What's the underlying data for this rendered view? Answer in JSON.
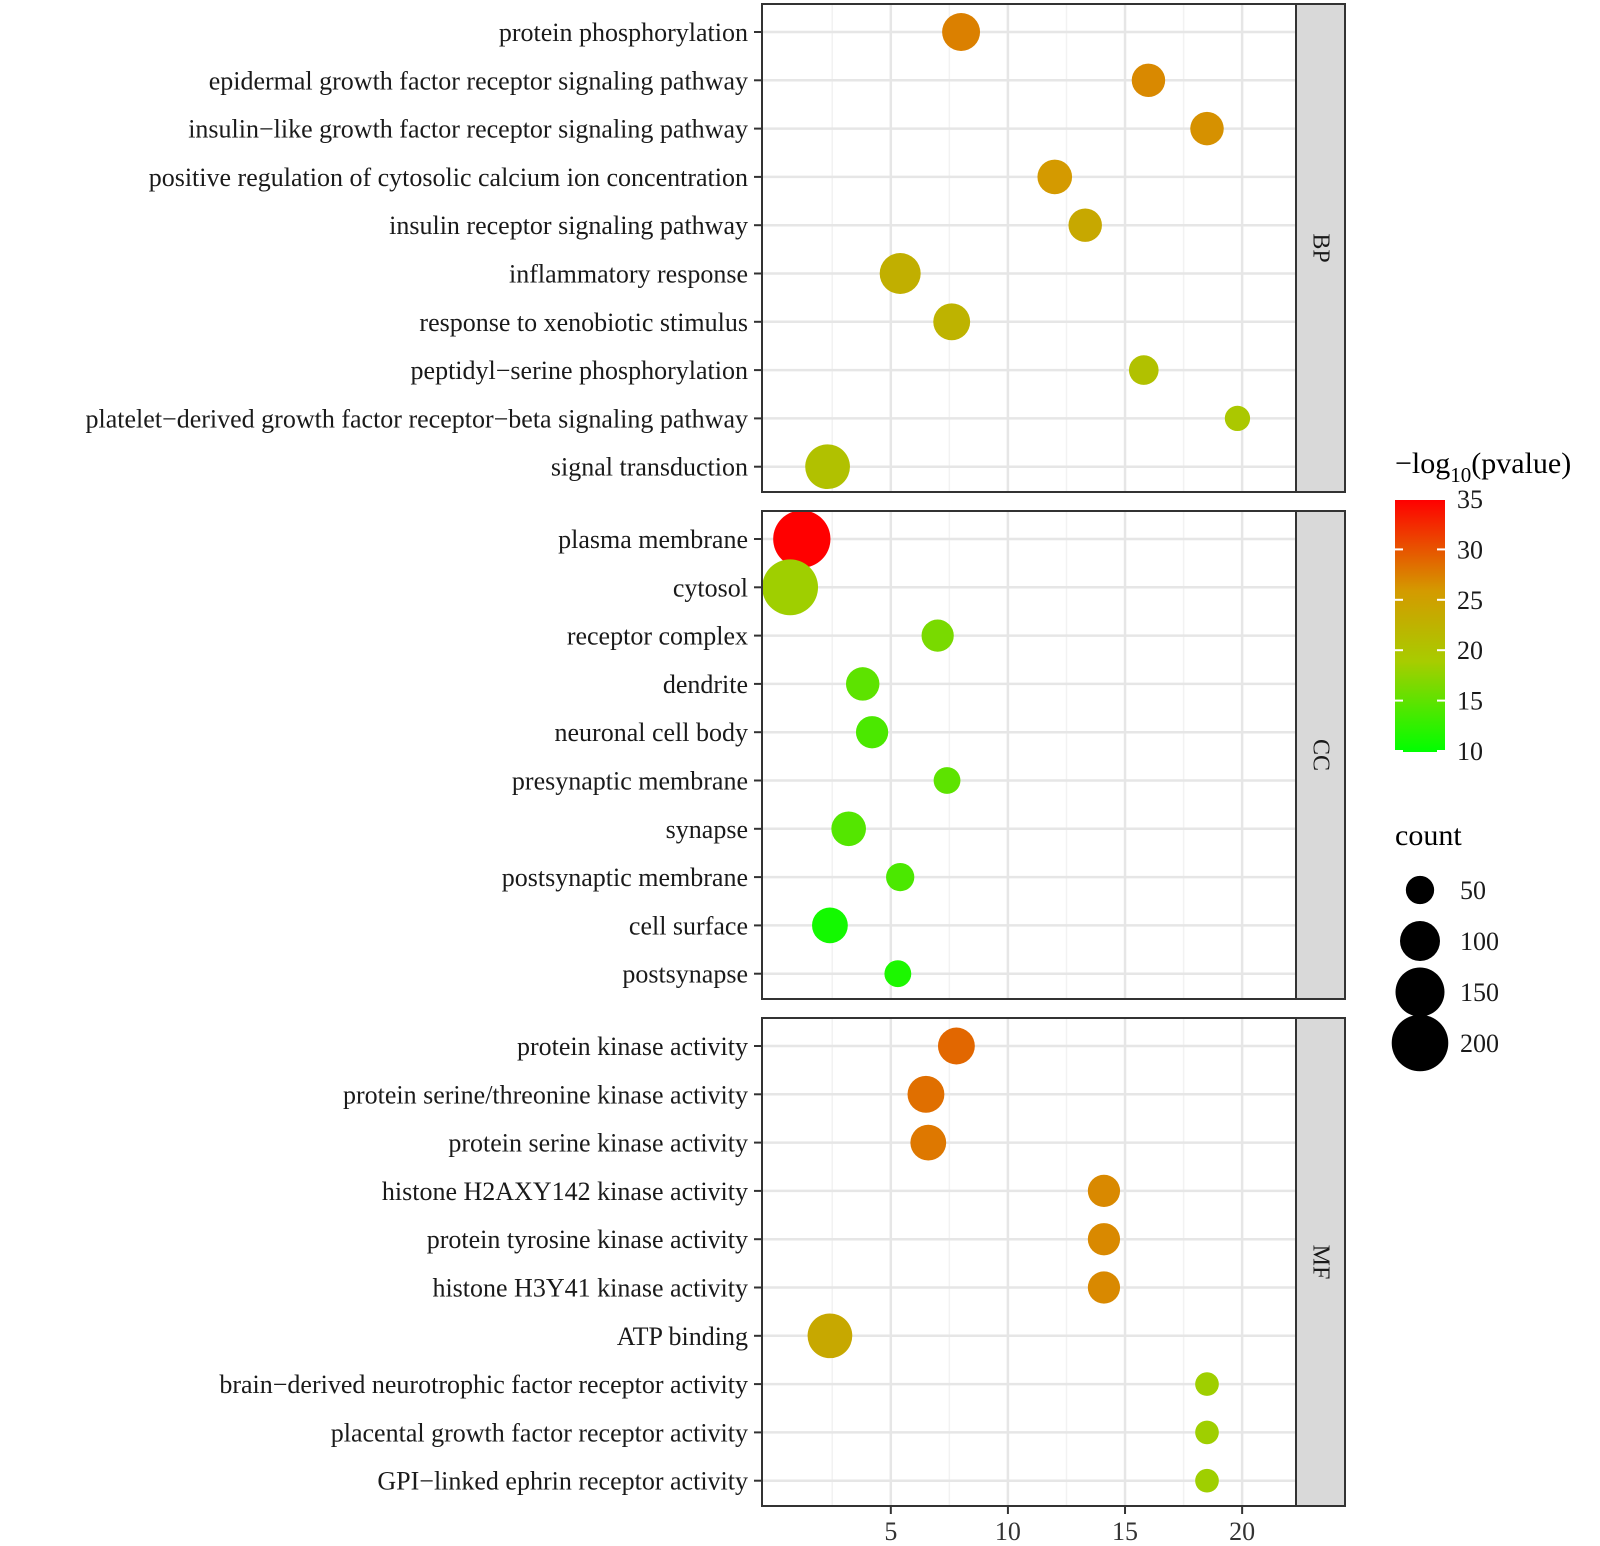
{
  "chart_data": {
    "type": "scatter",
    "x_ticks": [
      5,
      10,
      15,
      20
    ],
    "xlim": [
      -0.5,
      22.3
    ],
    "color_scale": {
      "title": "−log",
      "title_sub": "10",
      "title_suffix": "(pvalue)",
      "min": 10,
      "max": 35,
      "ticks": [
        "10",
        "15",
        "20",
        "25",
        "30",
        "35"
      ],
      "low_color": "#00ff00",
      "mid_color": "#a8cc00",
      "mid2_color": "#d49a00",
      "high_color": "#ff0000"
    },
    "size_scale": {
      "title": "count",
      "breaks": [
        50,
        100,
        150,
        200
      ],
      "labels": [
        "50",
        "100",
        "150",
        "200"
      ]
    },
    "panels": [
      {
        "facet": "BP",
        "terms": [
          {
            "term": "protein phosphorylation",
            "x": 8.0,
            "neglog10p": 27.5,
            "count": 90
          },
          {
            "term": "epidermal growth factor receptor signaling pathway",
            "x": 16.0,
            "neglog10p": 27.0,
            "count": 70
          },
          {
            "term": "insulin−like growth factor receptor signaling pathway",
            "x": 18.5,
            "neglog10p": 26.5,
            "count": 70
          },
          {
            "term": "positive regulation of cytosolic calcium ion concentration",
            "x": 12.0,
            "neglog10p": 26.0,
            "count": 75
          },
          {
            "term": "insulin receptor signaling pathway",
            "x": 13.3,
            "neglog10p": 24.0,
            "count": 70
          },
          {
            "term": "inflammatory response",
            "x": 5.4,
            "neglog10p": 23.0,
            "count": 105
          },
          {
            "term": "response to xenobiotic stimulus",
            "x": 7.6,
            "neglog10p": 22.5,
            "count": 85
          },
          {
            "term": "peptidyl−serine phosphorylation",
            "x": 15.8,
            "neglog10p": 20.5,
            "count": 55
          },
          {
            "term": "platelet−derived growth factor receptor−beta signaling pathway",
            "x": 19.8,
            "neglog10p": 19.5,
            "count": 40
          },
          {
            "term": "signal transduction",
            "x": 2.3,
            "neglog10p": 20.5,
            "count": 125
          }
        ]
      },
      {
        "facet": "CC",
        "terms": [
          {
            "term": "plasma membrane",
            "x": 1.2,
            "neglog10p": 35.0,
            "count": 205
          },
          {
            "term": "cytosol",
            "x": 0.7,
            "neglog10p": 18.5,
            "count": 195
          },
          {
            "term": "receptor complex",
            "x": 7.0,
            "neglog10p": 16.5,
            "count": 65
          },
          {
            "term": "dendrite",
            "x": 3.8,
            "neglog10p": 15.0,
            "count": 70
          },
          {
            "term": "neuronal cell body",
            "x": 4.2,
            "neglog10p": 14.0,
            "count": 65
          },
          {
            "term": "presynaptic membrane",
            "x": 7.4,
            "neglog10p": 15.0,
            "count": 45
          },
          {
            "term": "synapse",
            "x": 3.2,
            "neglog10p": 14.5,
            "count": 75
          },
          {
            "term": "postsynaptic membrane",
            "x": 5.4,
            "neglog10p": 14.0,
            "count": 50
          },
          {
            "term": "cell surface",
            "x": 2.4,
            "neglog10p": 11.0,
            "count": 80
          },
          {
            "term": "postsynapse",
            "x": 5.3,
            "neglog10p": 11.5,
            "count": 45
          }
        ]
      },
      {
        "facet": "MF",
        "terms": [
          {
            "term": "protein kinase activity",
            "x": 7.8,
            "neglog10p": 29.0,
            "count": 85
          },
          {
            "term": "protein serine/threonine kinase activity",
            "x": 6.5,
            "neglog10p": 28.5,
            "count": 85
          },
          {
            "term": "protein serine kinase activity",
            "x": 6.6,
            "neglog10p": 28.0,
            "count": 80
          },
          {
            "term": "histone H2AXY142 kinase activity",
            "x": 14.1,
            "neglog10p": 27.0,
            "count": 65
          },
          {
            "term": "protein tyrosine kinase activity",
            "x": 14.1,
            "neglog10p": 27.0,
            "count": 65
          },
          {
            "term": "histone H3Y41 kinase activity",
            "x": 14.1,
            "neglog10p": 27.0,
            "count": 65
          },
          {
            "term": "ATP binding",
            "x": 2.4,
            "neglog10p": 24.0,
            "count": 125
          },
          {
            "term": "brain−derived neurotrophic factor receptor activity",
            "x": 18.5,
            "neglog10p": 18.5,
            "count": 35
          },
          {
            "term": "placental growth factor receptor activity",
            "x": 18.5,
            "neglog10p": 18.5,
            "count": 35
          },
          {
            "term": "GPI−linked ephrin receptor activity",
            "x": 18.5,
            "neglog10p": 18.5,
            "count": 35
          }
        ]
      }
    ]
  }
}
